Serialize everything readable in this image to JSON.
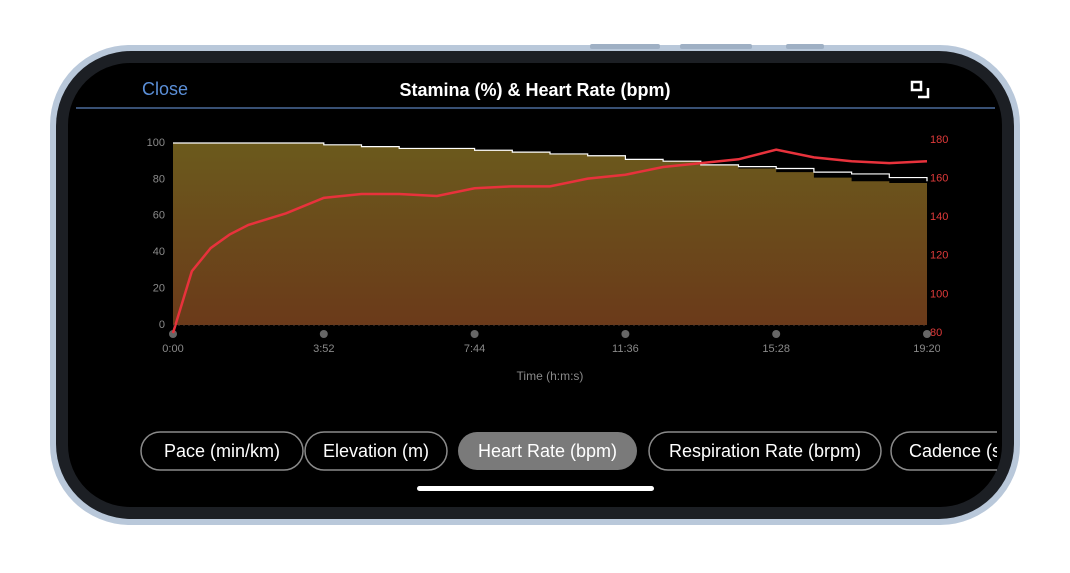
{
  "header": {
    "close": "Close",
    "title": "Stamina (%) & Heart Rate (bpm)"
  },
  "chart_data": {
    "type": "line",
    "x_label": "Time (h:m:s)",
    "x": [
      0,
      29,
      58,
      87,
      116,
      174,
      232,
      290,
      348,
      406,
      464,
      522,
      580,
      638,
      696,
      754,
      812,
      870,
      928,
      986,
      1044,
      1102,
      1160
    ],
    "xlim": [
      0,
      1160
    ],
    "xticks": [
      {
        "value": 0,
        "label": "0:00"
      },
      {
        "value": 232,
        "label": "3:52"
      },
      {
        "value": 464,
        "label": "7:44"
      },
      {
        "value": 696,
        "label": "11:36"
      },
      {
        "value": 928,
        "label": "15:28"
      },
      {
        "value": 1160,
        "label": "19:20"
      }
    ],
    "ylim": [
      0,
      100
    ],
    "yticks": [
      0,
      20,
      40,
      60,
      80,
      100
    ],
    "y2lim": [
      80,
      180
    ],
    "y2ticks": [
      80,
      100,
      120,
      140,
      160,
      180
    ],
    "series": [
      {
        "type": "area",
        "color": "#6b4a1a",
        "values": [
          100,
          100,
          100,
          100,
          100,
          100,
          99,
          98,
          97,
          97,
          96,
          95,
          94,
          93,
          91,
          90,
          88,
          86,
          84,
          81,
          79,
          78,
          76
        ]
      },
      {
        "type": "line",
        "color": "#ffffff",
        "values": [
          100,
          100,
          100,
          100,
          100,
          100,
          99,
          98,
          97,
          97,
          96,
          95,
          94,
          93,
          91,
          90,
          88,
          87,
          86,
          84,
          83,
          81,
          79
        ]
      },
      {
        "type": "line",
        "axis": "y2",
        "color": "#e8323c",
        "values": [
          80,
          112,
          124,
          131,
          136,
          142,
          150,
          152,
          152,
          151,
          155,
          156,
          156,
          160,
          162,
          166,
          168,
          170,
          175,
          171,
          169,
          168,
          169
        ]
      }
    ]
  },
  "tabs": [
    "Pace (min/km)",
    "Elevation (m)",
    "Heart Rate (bpm)",
    "Respiration Rate (brpm)",
    "Cadence (spm)"
  ]
}
